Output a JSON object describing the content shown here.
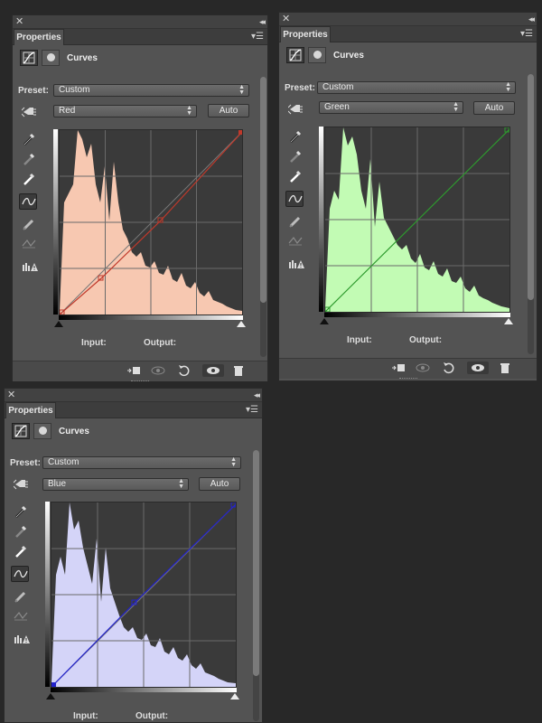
{
  "panels": [
    {
      "id": "red",
      "tab": "Properties",
      "title": "Curves",
      "preset_label": "Preset:",
      "preset_value": "Custom",
      "channel": "Red",
      "auto_label": "Auto",
      "input_label": "Input:",
      "output_label": "Output:",
      "histogram_color": "#f7c8b1",
      "curve_color": "#c0392b"
    },
    {
      "id": "green",
      "tab": "Properties",
      "title": "Curves",
      "preset_label": "Preset:",
      "preset_value": "Custom",
      "channel": "Green",
      "auto_label": "Auto",
      "input_label": "Input:",
      "output_label": "Output:",
      "histogram_color": "#c2fbb4",
      "curve_color": "#2e9a2e"
    },
    {
      "id": "blue",
      "tab": "Properties",
      "title": "Curves",
      "preset_label": "Preset:",
      "preset_value": "Custom",
      "channel": "Blue",
      "auto_label": "Auto",
      "input_label": "Input:",
      "output_label": "Output:",
      "histogram_color": "#d4d4f8",
      "curve_color": "#2222cc"
    }
  ],
  "icons": {
    "close": "close-icon",
    "collapse": "collapse-icon",
    "panel_menu": "panel-menu-icon",
    "curves": "curves-adjustment-icon",
    "mask": "mask-icon",
    "target_adjust": "targeted-adjustment-hand-icon",
    "eyedropper_black": "black-point-eyedropper-icon",
    "eyedropper_gray": "gray-point-eyedropper-icon",
    "eyedropper_white": "white-point-eyedropper-icon",
    "curve_tool": "edit-points-curve-icon",
    "pencil": "pencil-draw-icon",
    "smooth": "smooth-curve-icon",
    "clipping_warning": "clipping-warning-icon",
    "clip_to_layer": "clip-to-layer-icon",
    "view_previous": "view-previous-state-icon",
    "reset": "reset-icon",
    "visibility": "visibility-eye-icon",
    "delete": "delete-trash-icon"
  }
}
